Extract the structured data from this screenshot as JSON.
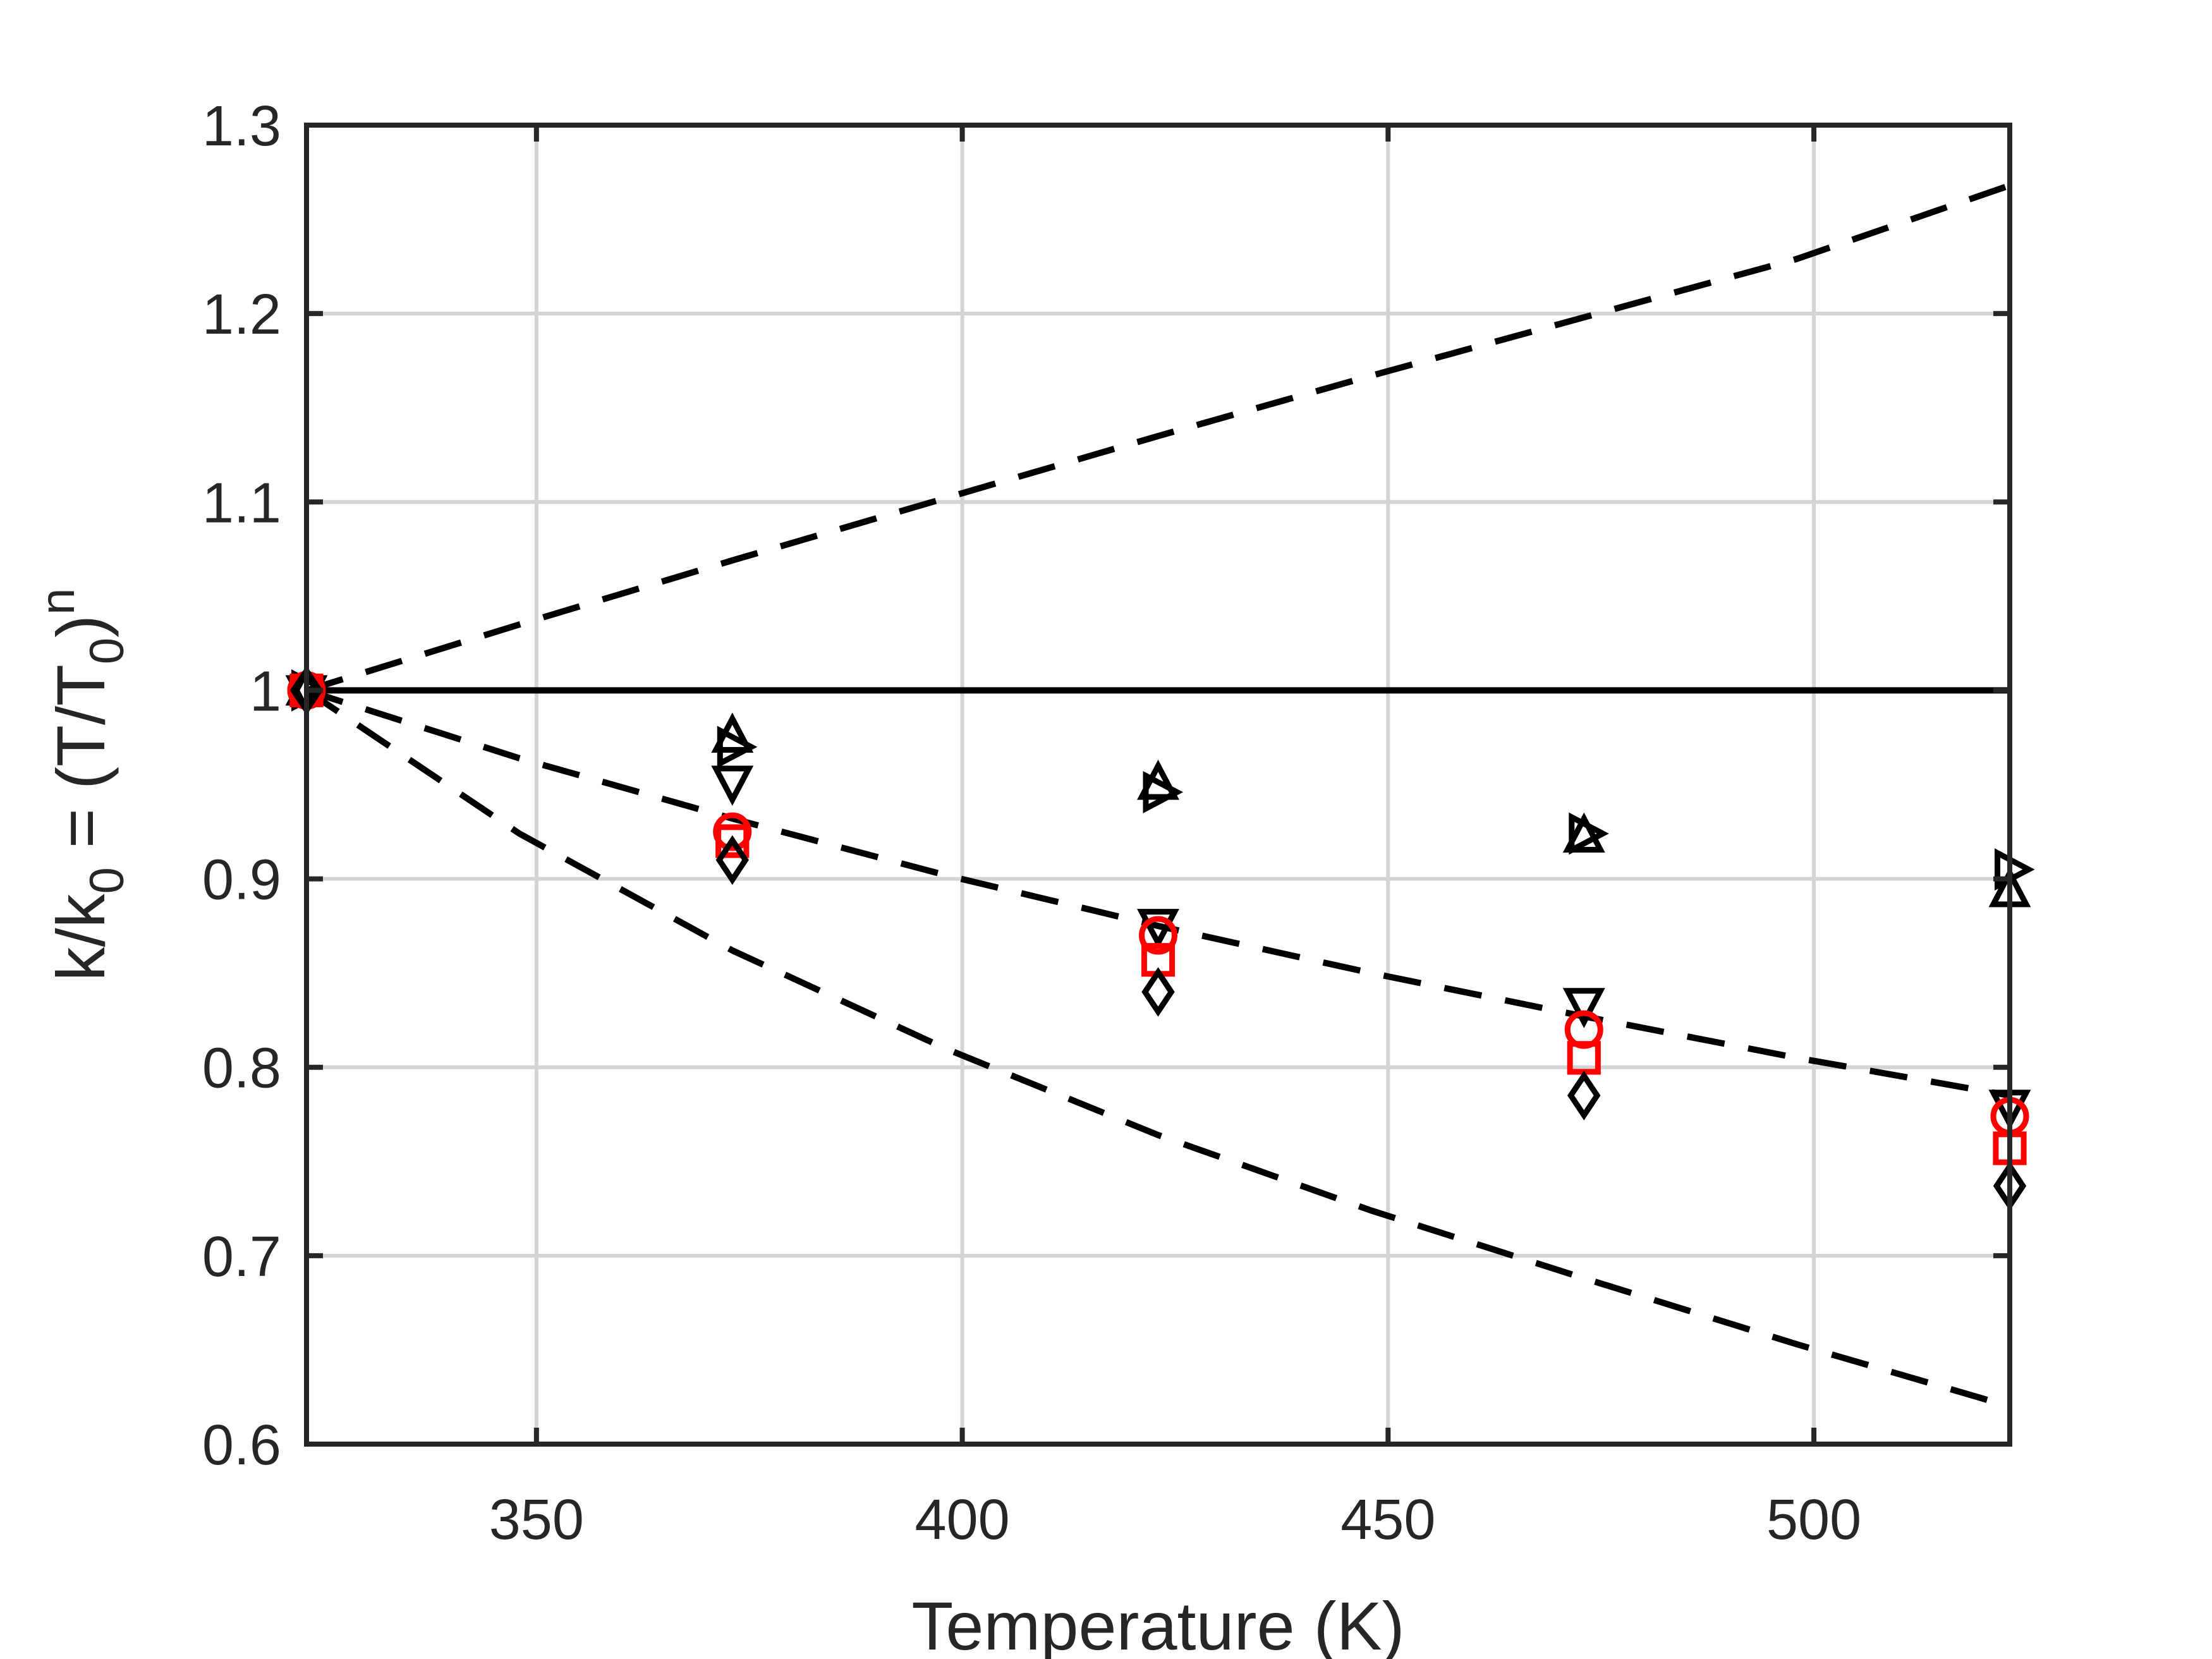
{
  "chart_data": {
    "type": "line",
    "title": "",
    "xlabel": "Temperature (K)",
    "ylabel": {
      "parts": [
        {
          "text": "k/k",
          "shift": "none"
        },
        {
          "text": "0",
          "shift": "sub"
        },
        {
          "text": " = (T/T",
          "shift": "none"
        },
        {
          "text": "0",
          "shift": "sub"
        },
        {
          "text": ")",
          "shift": "none"
        },
        {
          "text": "n",
          "shift": "sup"
        }
      ]
    },
    "xlim": [
      323,
      523
    ],
    "ylim": [
      0.6,
      1.3
    ],
    "xticks": [
      350,
      400,
      450,
      500
    ],
    "xtick_labels": [
      "350",
      "400",
      "450",
      "500"
    ],
    "yticks": [
      0.6,
      0.7,
      0.8,
      0.9,
      1.0,
      1.1,
      1.2,
      1.3
    ],
    "ytick_labels": [
      "0.6",
      "0.7",
      "0.8",
      "0.9",
      "1",
      "1.1",
      "1.2",
      "1.3"
    ],
    "grid": true,
    "colors": {
      "axis": "#262626",
      "grid": "#d4d4d4",
      "black": "#000000",
      "red": "#ff0000"
    },
    "lines": [
      {
        "style": "solid",
        "color": "#000000",
        "x": [
          323,
          523
        ],
        "y": [
          1.0,
          1.0
        ]
      },
      {
        "style": "dashed",
        "color": "#000000",
        "x": [
          323,
          348,
          373,
          398,
          423,
          448,
          473,
          498,
          523
        ],
        "y": [
          1.0,
          1.035,
          1.069,
          1.102,
          1.135,
          1.167,
          1.198,
          1.229,
          1.268
        ]
      },
      {
        "style": "dashed",
        "color": "#000000",
        "x": [
          323,
          348,
          373,
          398,
          423,
          448,
          473,
          498,
          523
        ],
        "y": [
          1.0,
          0.964,
          0.932,
          0.902,
          0.875,
          0.85,
          0.827,
          0.805,
          0.785
        ]
      },
      {
        "style": "dashed",
        "color": "#000000",
        "x": [
          323,
          348,
          373,
          398,
          423,
          448,
          473,
          498,
          523
        ],
        "y": [
          1.0,
          0.924,
          0.862,
          0.81,
          0.764,
          0.724,
          0.688,
          0.653,
          0.62
        ]
      }
    ],
    "series": [
      {
        "marker": "triangle-up",
        "color": "#000000",
        "x": [
          323,
          373,
          423,
          473,
          523
        ],
        "y": [
          1.0,
          0.975,
          0.95,
          0.922,
          0.893
        ]
      },
      {
        "marker": "triangle-right",
        "color": "#000000",
        "x": [
          323,
          373,
          423,
          473,
          523
        ],
        "y": [
          1.0,
          0.97,
          0.946,
          0.924,
          0.905
        ]
      },
      {
        "marker": "triangle-down",
        "color": "#000000",
        "x": [
          323,
          373,
          423,
          473,
          523
        ],
        "y": [
          1.0,
          0.952,
          0.876,
          0.834,
          0.78
        ]
      },
      {
        "marker": "circle",
        "color": "#ff0000",
        "x": [
          323,
          373,
          423,
          473,
          523
        ],
        "y": [
          1.0,
          0.925,
          0.87,
          0.82,
          0.774
        ]
      },
      {
        "marker": "square",
        "color": "#ff0000",
        "x": [
          323,
          373,
          423,
          473,
          523
        ],
        "y": [
          1.0,
          0.92,
          0.857,
          0.805,
          0.757
        ]
      },
      {
        "marker": "diamond",
        "color": "#000000",
        "x": [
          323,
          373,
          423,
          473,
          523
        ],
        "y": [
          1.0,
          0.91,
          0.84,
          0.785,
          0.737
        ]
      }
    ]
  }
}
